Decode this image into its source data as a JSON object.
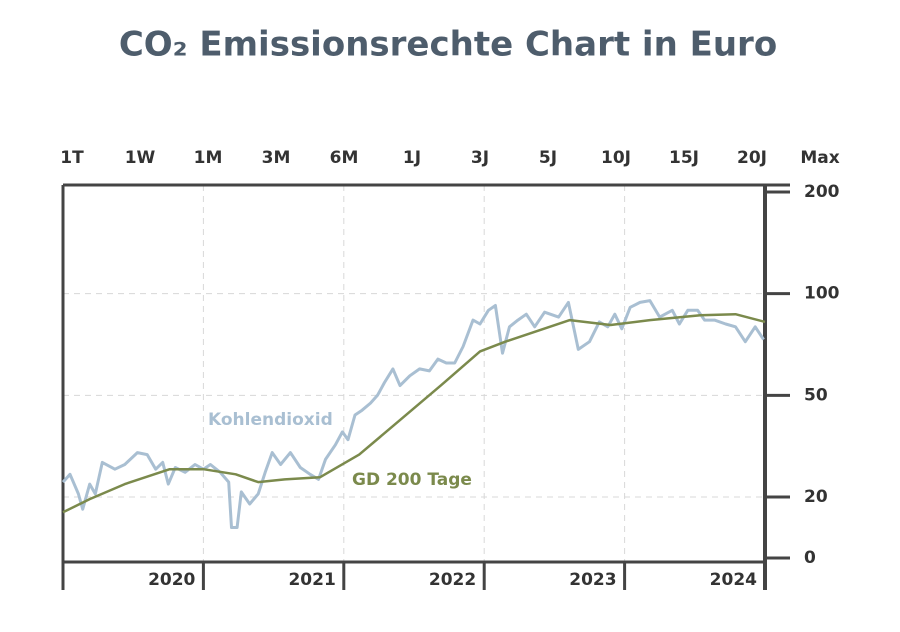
{
  "chart_data": {
    "type": "line",
    "title": "CO₂ Emissionsrechte Chart in Euro",
    "periods": [
      "1T",
      "1W",
      "1M",
      "3M",
      "6M",
      "1J",
      "3J",
      "5J",
      "10J",
      "15J",
      "20J",
      "Max"
    ],
    "xlim": [
      2020,
      2025
    ],
    "xticks": [
      2020,
      2021,
      2022,
      2023,
      2024,
      2025
    ],
    "period_labels": [
      "2020",
      "2021",
      "2022",
      "2023",
      "2024"
    ],
    "ylim": [
      0,
      200
    ],
    "yticks": [
      0,
      20,
      50,
      100,
      200
    ],
    "y_scale": "piecewise",
    "grid": true,
    "series": [
      {
        "name": "Kohlendioxid",
        "color": "#a9bfd2",
        "x": [
          2020.0,
          2020.05,
          2020.11,
          2020.14,
          2020.19,
          2020.23,
          2020.28,
          2020.37,
          2020.44,
          2020.53,
          2020.6,
          2020.66,
          2020.71,
          2020.75,
          2020.8,
          2020.87,
          2020.94,
          2021.0,
          2021.05,
          2021.12,
          2021.18,
          2021.2,
          2021.24,
          2021.27,
          2021.33,
          2021.39,
          2021.44,
          2021.49,
          2021.55,
          2021.62,
          2021.69,
          2021.76,
          2021.82,
          2021.87,
          2021.94,
          2021.99,
          2022.03,
          2022.08,
          2022.13,
          2022.19,
          2022.24,
          2022.29,
          2022.35,
          2022.4,
          2022.47,
          2022.54,
          2022.61,
          2022.67,
          2022.73,
          2022.79,
          2022.85,
          2022.92,
          2022.97,
          2023.03,
          2023.08,
          2023.13,
          2023.18,
          2023.24,
          2023.3,
          2023.36,
          2023.43,
          2023.53,
          2023.6,
          2023.67,
          2023.75,
          2023.82,
          2023.88,
          2023.93,
          2023.98,
          2024.04,
          2024.11,
          2024.18,
          2024.25,
          2024.34,
          2024.39,
          2024.45,
          2024.52,
          2024.57,
          2024.64,
          2024.72,
          2024.79,
          2024.86,
          2024.93,
          2024.99
        ],
        "values": [
          24.4,
          26.7,
          20.9,
          16,
          23.8,
          20.9,
          30.2,
          28.2,
          29.6,
          33.1,
          32.5,
          28.2,
          30.2,
          23.8,
          28.7,
          27.3,
          29.6,
          28.2,
          29.6,
          27.3,
          24.4,
          10,
          10,
          21.5,
          17.7,
          20.9,
          27.3,
          33.1,
          29.6,
          33.1,
          28.7,
          26.7,
          25.2,
          31.1,
          35.4,
          39.2,
          36.9,
          44.2,
          45.6,
          47.7,
          50,
          56.3,
          63,
          54.8,
          59.6,
          63,
          62,
          67.8,
          65.9,
          65.9,
          74,
          87,
          85.1,
          91.8,
          94.2,
          70.7,
          83.7,
          87,
          89.9,
          83.7,
          90.9,
          88.5,
          95.7,
          72.6,
          76.4,
          86.1,
          83.7,
          89.9,
          82.7,
          93.3,
          95.7,
          96.6,
          88.5,
          91.8,
          85.1,
          91.8,
          91.8,
          87,
          87,
          85.1,
          83.7,
          76.4,
          83.7,
          77.4
        ]
      },
      {
        "name": "GD 200 Tage",
        "color": "#7b8a4c",
        "x": [
          2020.0,
          2020.19,
          2020.44,
          2020.76,
          2021.0,
          2021.23,
          2021.39,
          2021.58,
          2021.83,
          2022.11,
          2022.4,
          2022.69,
          2022.97,
          2023.15,
          2023.4,
          2023.61,
          2023.9,
          2024.18,
          2024.54,
          2024.79,
          2025.0
        ],
        "values": [
          15,
          19.3,
          23.8,
          28.2,
          28.2,
          26.7,
          24.4,
          25.2,
          25.8,
          32.5,
          42.7,
          54.8,
          71.6,
          76.4,
          82.2,
          87,
          84.6,
          87,
          89.4,
          89.9,
          86.1
        ]
      }
    ]
  }
}
